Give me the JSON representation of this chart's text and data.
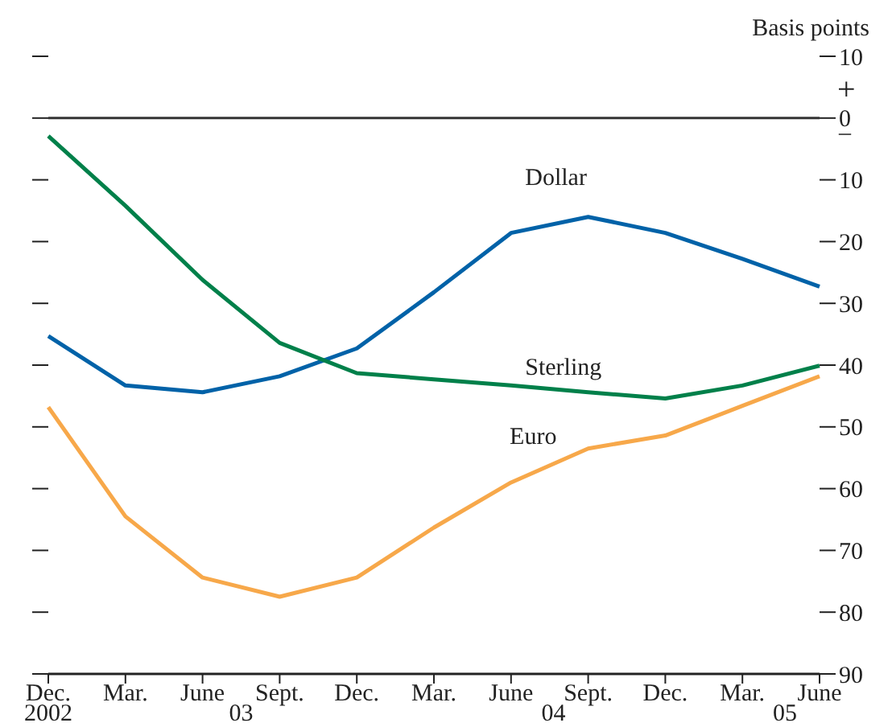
{
  "chart_data": {
    "type": "line",
    "ylabel": "Basis points",
    "categories": [
      "Dec.",
      "Mar.",
      "June",
      "Sept.",
      "Dec.",
      "Mar.",
      "June",
      "Sept.",
      "Dec.",
      "Mar.",
      "June"
    ],
    "series": [
      {
        "name": "Dollar",
        "color": "#0062a8",
        "values": [
          -35.3,
          -43.3,
          -44.4,
          -41.8,
          -37.3,
          -28.2,
          -18.6,
          -16.0,
          -18.6,
          -22.8,
          -27.3
        ]
      },
      {
        "name": "Sterling",
        "color": "#00804a",
        "values": [
          -2.9,
          -14.2,
          -26.2,
          -36.4,
          -41.3,
          -42.3,
          -43.3,
          -44.4,
          -45.4,
          -43.3,
          -40.1
        ]
      },
      {
        "name": "Euro",
        "color": "#f7a84a",
        "values": [
          -46.8,
          -64.5,
          -74.4,
          -77.5,
          -74.4,
          -66.3,
          -59.0,
          -53.5,
          -51.4,
          -46.6,
          -41.8
        ]
      }
    ],
    "ylim": [
      -90,
      10
    ],
    "yticks": [
      {
        "value": 10,
        "label": "10"
      },
      0,
      {
        "value": -10,
        "label": "10"
      },
      {
        "value": -20,
        "label": "20"
      },
      {
        "value": -30,
        "label": "30"
      },
      {
        "value": -40,
        "label": "40"
      },
      {
        "value": -50,
        "label": "50"
      },
      {
        "value": -60,
        "label": "60"
      },
      {
        "value": -70,
        "label": "70"
      },
      {
        "value": -80,
        "label": "80"
      },
      {
        "value": -90,
        "label": "90"
      }
    ],
    "ref_lines": [
      {
        "axis": "y",
        "value": 0,
        "color": "#333333"
      }
    ],
    "annotations": [
      "2002",
      "03",
      "04",
      "05",
      "+",
      "–"
    ],
    "marker": "none",
    "line_style": "solid"
  }
}
